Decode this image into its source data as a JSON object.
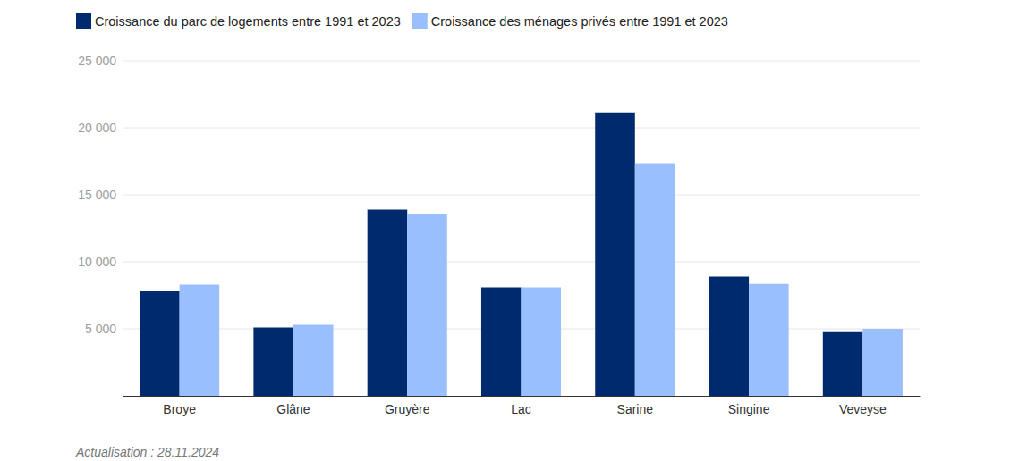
{
  "chart_data": {
    "type": "bar",
    "categories": [
      "Broye",
      "Glâne",
      "Gruyère",
      "Lac",
      "Sarine",
      "Singine",
      "Veveyse"
    ],
    "series": [
      {
        "name": "Croissance du parc de logements entre 1991 et 2023",
        "color": "#002a6e",
        "values": [
          7800,
          5100,
          13900,
          8100,
          21150,
          8900,
          4750
        ]
      },
      {
        "name": "Croissance des ménages privés entre 1991 et 2023",
        "color": "#99bfff",
        "values": [
          8300,
          5300,
          13550,
          8100,
          17300,
          8350,
          5000
        ]
      }
    ],
    "ylim": [
      0,
      25000
    ],
    "yticks": [
      {
        "value": 5000,
        "label": "5 000"
      },
      {
        "value": 10000,
        "label": "10 000"
      },
      {
        "value": 15000,
        "label": "15 000"
      },
      {
        "value": 20000,
        "label": "20 000"
      },
      {
        "value": 25000,
        "label": "25 000"
      }
    ],
    "grid": true,
    "legend": "top-left",
    "note": "Actualisation : 28.11.2024"
  }
}
